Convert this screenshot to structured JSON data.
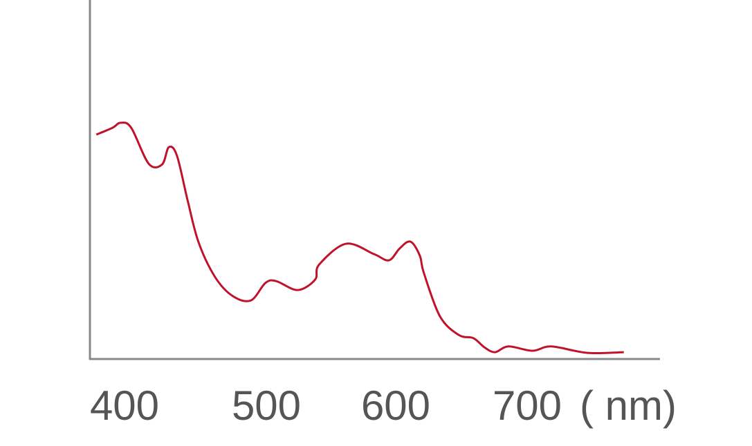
{
  "chart_data": {
    "type": "line",
    "title": "",
    "xlabel": "",
    "ylabel": "",
    "x_unit_label": "( nm)",
    "xlim": [
      374,
      803
    ],
    "ylim": [
      0,
      1
    ],
    "x_ticks": [
      "400",
      "500",
      "600",
      "700"
    ],
    "grid": false,
    "y_ticks_shown": false,
    "series": [
      {
        "color": "#c0132b",
        "x": [
          379,
          391,
          397,
          405,
          418,
          428,
          433,
          439,
          447,
          455,
          467,
          480,
          494,
          505,
          513,
          529,
          542,
          545,
          565,
          586,
          597,
          605,
          613,
          620,
          623,
          635,
          649,
          660,
          668,
          676,
          686,
          704,
          718,
          745,
          772
        ],
        "y": [
          0.625,
          0.644,
          0.658,
          0.644,
          0.544,
          0.542,
          0.59,
          0.567,
          0.442,
          0.327,
          0.231,
          0.177,
          0.163,
          0.212,
          0.217,
          0.192,
          0.221,
          0.263,
          0.321,
          0.292,
          0.275,
          0.308,
          0.327,
          0.288,
          0.24,
          0.119,
          0.067,
          0.058,
          0.033,
          0.019,
          0.035,
          0.023,
          0.035,
          0.017,
          0.019
        ]
      }
    ]
  },
  "colors": {
    "axis": "#888888",
    "line": "#c0132b",
    "label": "#555555"
  }
}
